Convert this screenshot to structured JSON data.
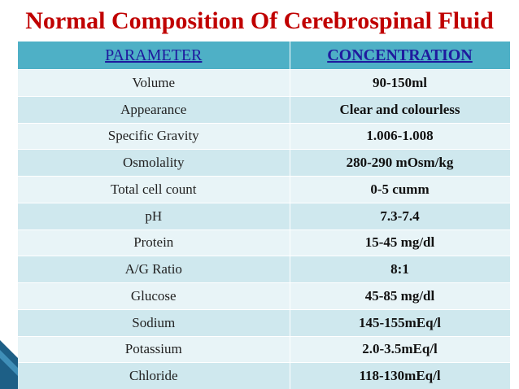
{
  "title": "Normal Composition Of Cerebrospinal Fluid",
  "table": {
    "headers": [
      "PARAMETER",
      "CONCENTRATION"
    ],
    "rows": [
      {
        "parameter": "Volume",
        "concentration": "90-150ml"
      },
      {
        "parameter": "Appearance",
        "concentration": "Clear and colourless"
      },
      {
        "parameter": "Specific Gravity",
        "concentration": "1.006-1.008"
      },
      {
        "parameter": "Osmolality",
        "concentration": "280-290 mOsm/kg"
      },
      {
        "parameter": "Total cell count",
        "concentration": "0-5 cumm"
      },
      {
        "parameter": "pH",
        "concentration": "7.3-7.4"
      },
      {
        "parameter": "Protein",
        "concentration": "15-45 mg/dl"
      },
      {
        "parameter": "A/G Ratio",
        "concentration": "8:1"
      },
      {
        "parameter": "Glucose",
        "concentration": "45-85 mg/dl"
      },
      {
        "parameter": "Sodium",
        "concentration": "145-155mEq/l"
      },
      {
        "parameter": "Potassium",
        "concentration": "2.0-3.5mEq/l"
      },
      {
        "parameter": "Chloride",
        "concentration": "118-130mEq/l"
      }
    ]
  },
  "colors": {
    "title": "#c00000",
    "header_bg": "#4eb0c6",
    "header_text": "#1f1a9e",
    "row_odd": "#cfe8ee",
    "row_even": "#e8f4f7"
  }
}
